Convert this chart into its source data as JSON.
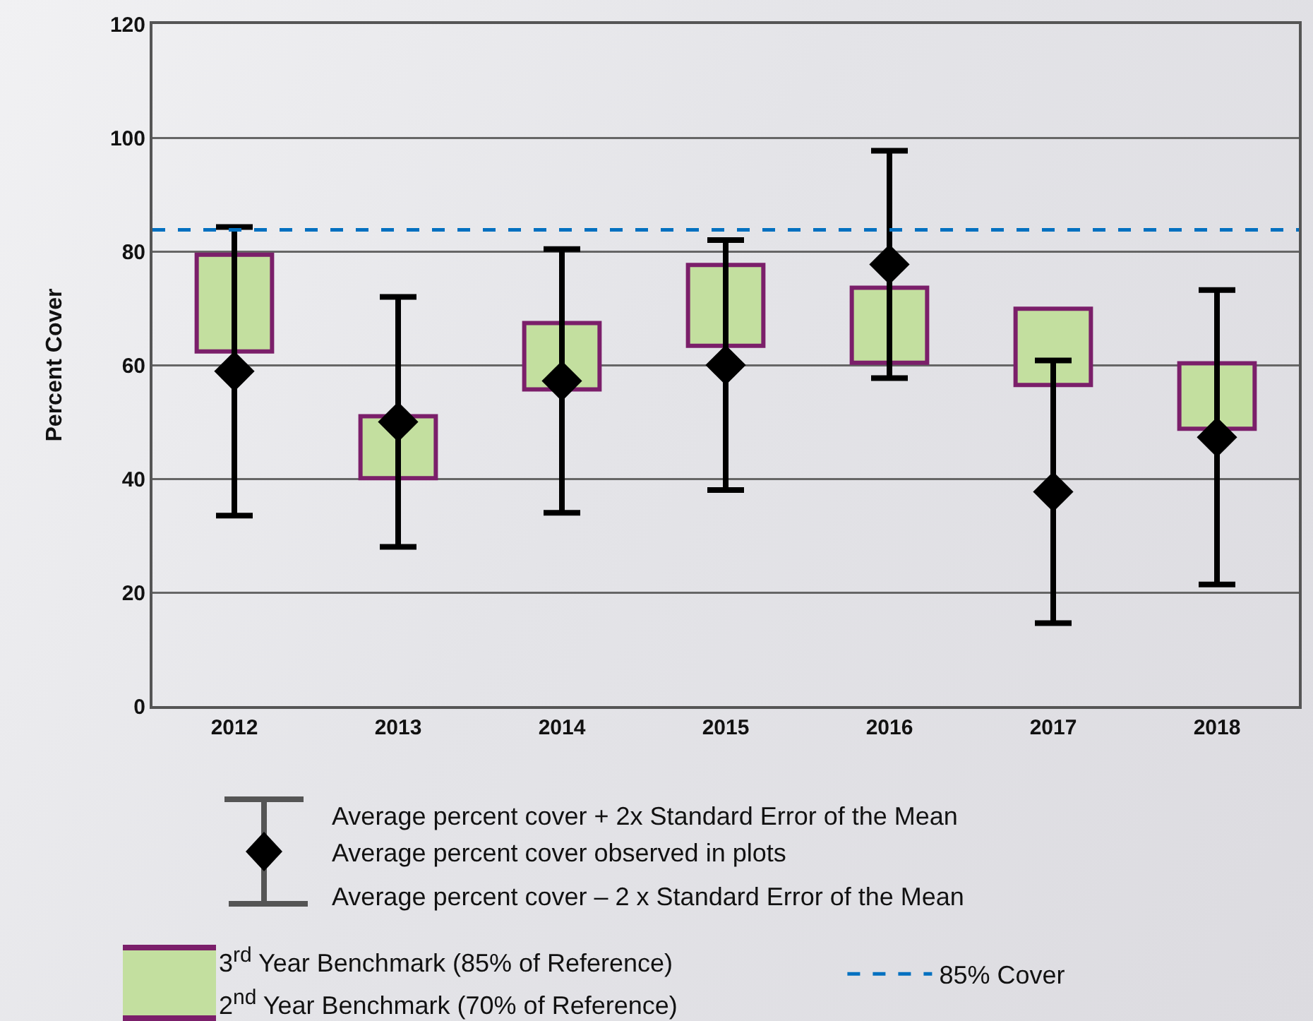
{
  "chart_data": {
    "type": "bar",
    "ylabel": "Percent Cover",
    "categories": [
      "2012",
      "2013",
      "2014",
      "2015",
      "2016",
      "2017",
      "2018"
    ],
    "ylim": [
      0,
      120
    ],
    "yticks": [
      0,
      20,
      40,
      60,
      80,
      100,
      120
    ],
    "grid": "y",
    "legend": "bottom",
    "series": [
      {
        "name": "3$^{rd}$ Year Benchmark (85% of Reference)",
        "color": "#c3df9f",
        "base": [
          62.4,
          40.1,
          55.7,
          63.4,
          60.4,
          56.5,
          48.8
        ],
        "values": [
          17.0,
          10.9,
          11.7,
          14.2,
          13.2,
          13.4,
          11.5
        ]
      },
      {
        "type": "scatter",
        "name": "Average percent cover observed in plots",
        "color": "#000000",
        "marker": "diamond",
        "values": [
          58.9,
          50.0,
          57.2,
          60.0,
          77.7,
          37.7,
          47.3
        ],
        "errors": [
          25.4,
          22.0,
          23.2,
          22.0,
          20.0,
          23.1,
          25.9
        ]
      }
    ],
    "ref_lines": [
      {
        "axis": "y",
        "value": 83.8,
        "label": "85% Cover",
        "color": "#0070c0",
        "line_style": "dashed"
      }
    ],
    "annotations": [
      "Average percent cover + 2x Standard Error of the Mean",
      "Average percent cover – 2 x Standard Error of the Mean",
      "2$^{nd}$ Year Benchmark (70% of Reference)"
    ]
  }
}
